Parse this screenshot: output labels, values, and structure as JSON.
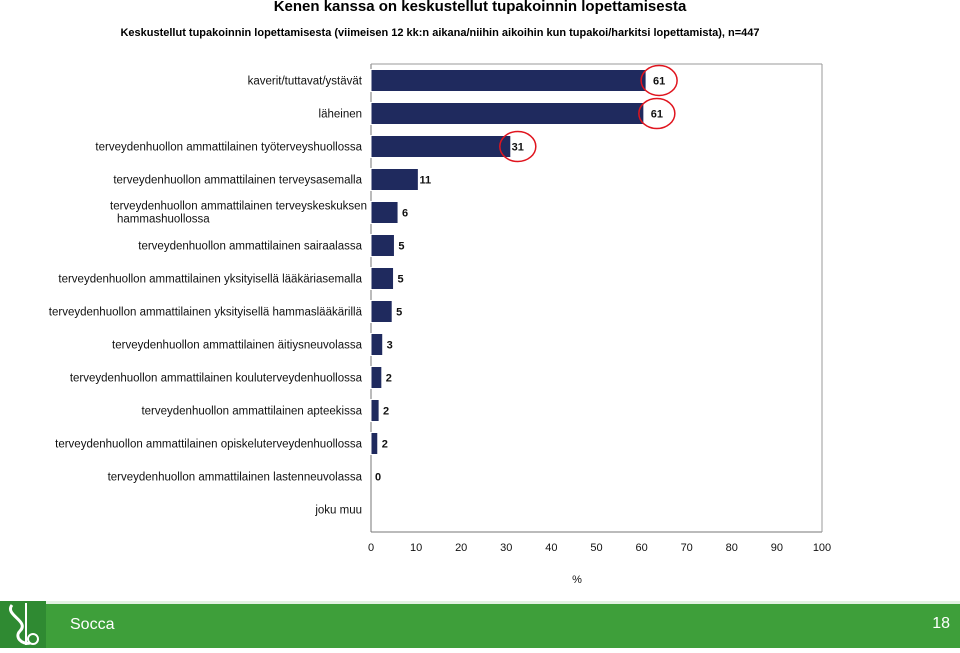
{
  "chart_data": {
    "type": "bar",
    "orientation": "horizontal",
    "title": "Kenen kanssa on keskustellut tupakoinnin lopettamisesta",
    "subtitle": "Keskustellut tupakoinnin lopettamisesta (viimeisen 12 kk:n aikana/niihin aikoihin kun tupakoi/harkitsi lopettamista), n=447",
    "xlabel": "%",
    "xlim": [
      0,
      100
    ],
    "xticks": [
      "0",
      "10",
      "20",
      "30",
      "40",
      "50",
      "60",
      "70",
      "80",
      "90",
      "100"
    ],
    "categories": [
      [
        "kaverit/tuttavat/ystävät"
      ],
      [
        "läheinen"
      ],
      [
        "terveydenhuollon ammattilainen työterveyshuollossa"
      ],
      [
        "terveydenhuollon ammattilainen terveysasemalla"
      ],
      [
        "terveydenhuollon ammattilainen terveyskeskuksen",
        "hammashuollossa"
      ],
      [
        "terveydenhuollon ammattilainen sairaalassa"
      ],
      [
        "terveydenhuollon ammattilainen yksityisellä lääkäriasemalla"
      ],
      [
        "terveydenhuollon ammattilainen yksityisellä hammaslääkärillä"
      ],
      [
        "terveydenhuollon ammattilainen äitiysneuvolassa"
      ],
      [
        "terveydenhuollon ammattilainen kouluterveydenhuollossa"
      ],
      [
        "terveydenhuollon ammattilainen apteekissa"
      ],
      [
        "terveydenhuollon ammattilainen opiskeluterveydenhuollossa"
      ],
      [
        "terveydenhuollon ammattilainen lastenneuvolassa"
      ],
      [
        "joku muu"
      ]
    ],
    "values": [
      61,
      61,
      31,
      11,
      6,
      5,
      5,
      5,
      3,
      2,
      2,
      2,
      0,
      null
    ],
    "value_labels": [
      "61",
      "61",
      "31",
      "11",
      "6",
      "5",
      "5",
      "5",
      "3",
      "2",
      "2",
      "2",
      "0",
      ""
    ],
    "bar_values": [
      61,
      60.5,
      31,
      10.5,
      6,
      5.2,
      5,
      4.7,
      2.6,
      2.4,
      1.8,
      1.5,
      0,
      0
    ],
    "highlighted": [
      0,
      1,
      2
    ],
    "bar_color": "#1f2a5e",
    "highlight_color": "#e0141e",
    "grid": false,
    "legend": "none"
  },
  "footer": {
    "brand": "Socca",
    "page_number": "18",
    "color": "#3e9f3a"
  }
}
